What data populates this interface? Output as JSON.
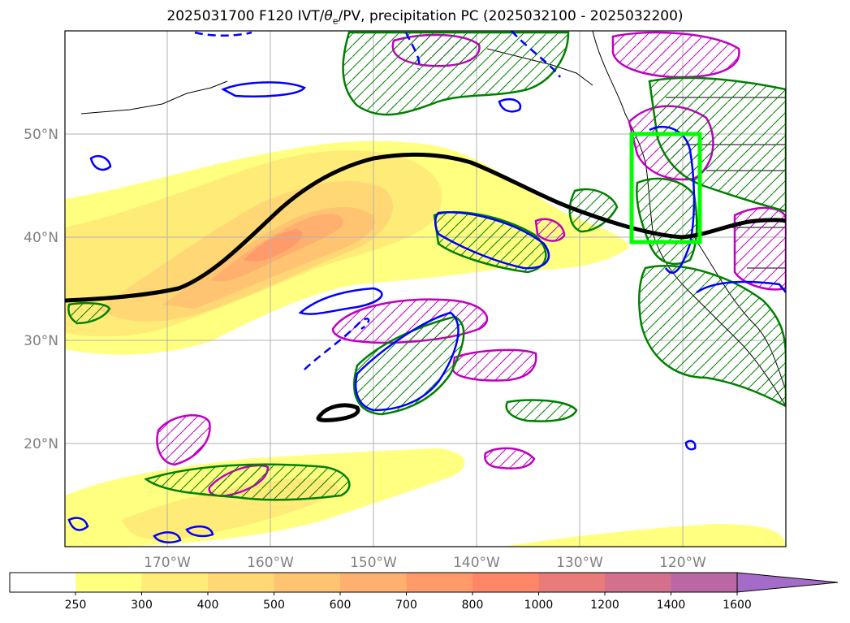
{
  "title_prefix": "2025031700 F120 IVT/",
  "title_theta": "θ",
  "title_theta_sub": "e",
  "title_suffix": "/PV, precipitation PC (2025032100 - 2025032200)",
  "lat_labels": [
    "50°N",
    "40°N",
    "30°N",
    "20°N"
  ],
  "lon_labels": [
    "170°W",
    "160°W",
    "150°W",
    "140°W",
    "130°W",
    "120°W"
  ],
  "colorbar": {
    "ticks": [
      "250",
      "300",
      "400",
      "500",
      "600",
      "700",
      "800",
      "1000",
      "1200",
      "1400",
      "1600"
    ],
    "colors": [
      "#ffff80",
      "#ffeb78",
      "#ffd875",
      "#ffc472",
      "#ffb06e",
      "#ff9b6b",
      "#ff8767",
      "#e97b7a",
      "#d2708e",
      "#bc66a4",
      "#a56bc8"
    ],
    "extend": "max"
  },
  "map": {
    "region": "North Pacific / US West Coast",
    "lat_range": [
      10,
      60
    ],
    "lon_range": [
      -180,
      -110
    ],
    "gridlines": true,
    "box_color": "#00ff00",
    "jet_color": "#000000",
    "contour_colors": {
      "green": "#008000",
      "blue": "#0000ff",
      "magenta": "#c000c0"
    }
  }
}
